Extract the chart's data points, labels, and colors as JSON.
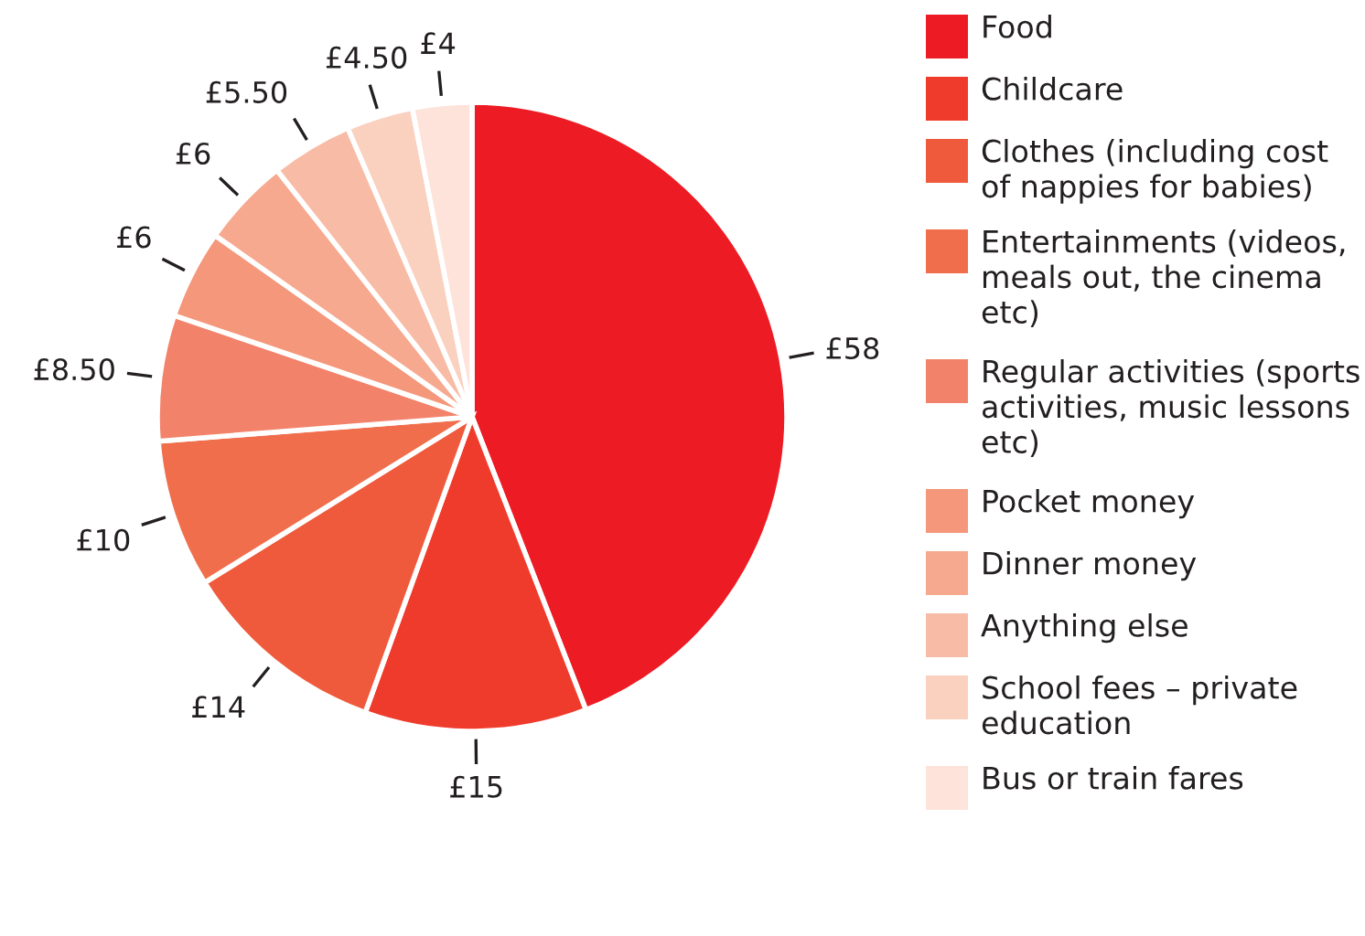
{
  "chart_data": {
    "type": "pie",
    "categories": [
      "Food",
      "Childcare",
      "Clothes (including cost of nappies for babies)",
      "Entertainments (videos, meals out, the cinema etc)",
      "Regular activities (sports activities, music lessons etc)",
      "Pocket money",
      "Dinner money",
      "Anything else",
      "School fees – private education",
      "Bus or train fares"
    ],
    "values": [
      58,
      15,
      14,
      10,
      8.5,
      6,
      6,
      5.5,
      4.5,
      4
    ],
    "value_labels": [
      "£58",
      "£15",
      "£14",
      "£10",
      "£8.50",
      "£6",
      "£6",
      "£5.50",
      "£4.50",
      "£4"
    ],
    "colors": [
      "#ed1c24",
      "#ef3b2c",
      "#f05a3c",
      "#f06e4c",
      "#f3826a",
      "#f4977a",
      "#f6a98e",
      "#f8bca6",
      "#fad0bf",
      "#fde3da"
    ],
    "legend": "right"
  }
}
